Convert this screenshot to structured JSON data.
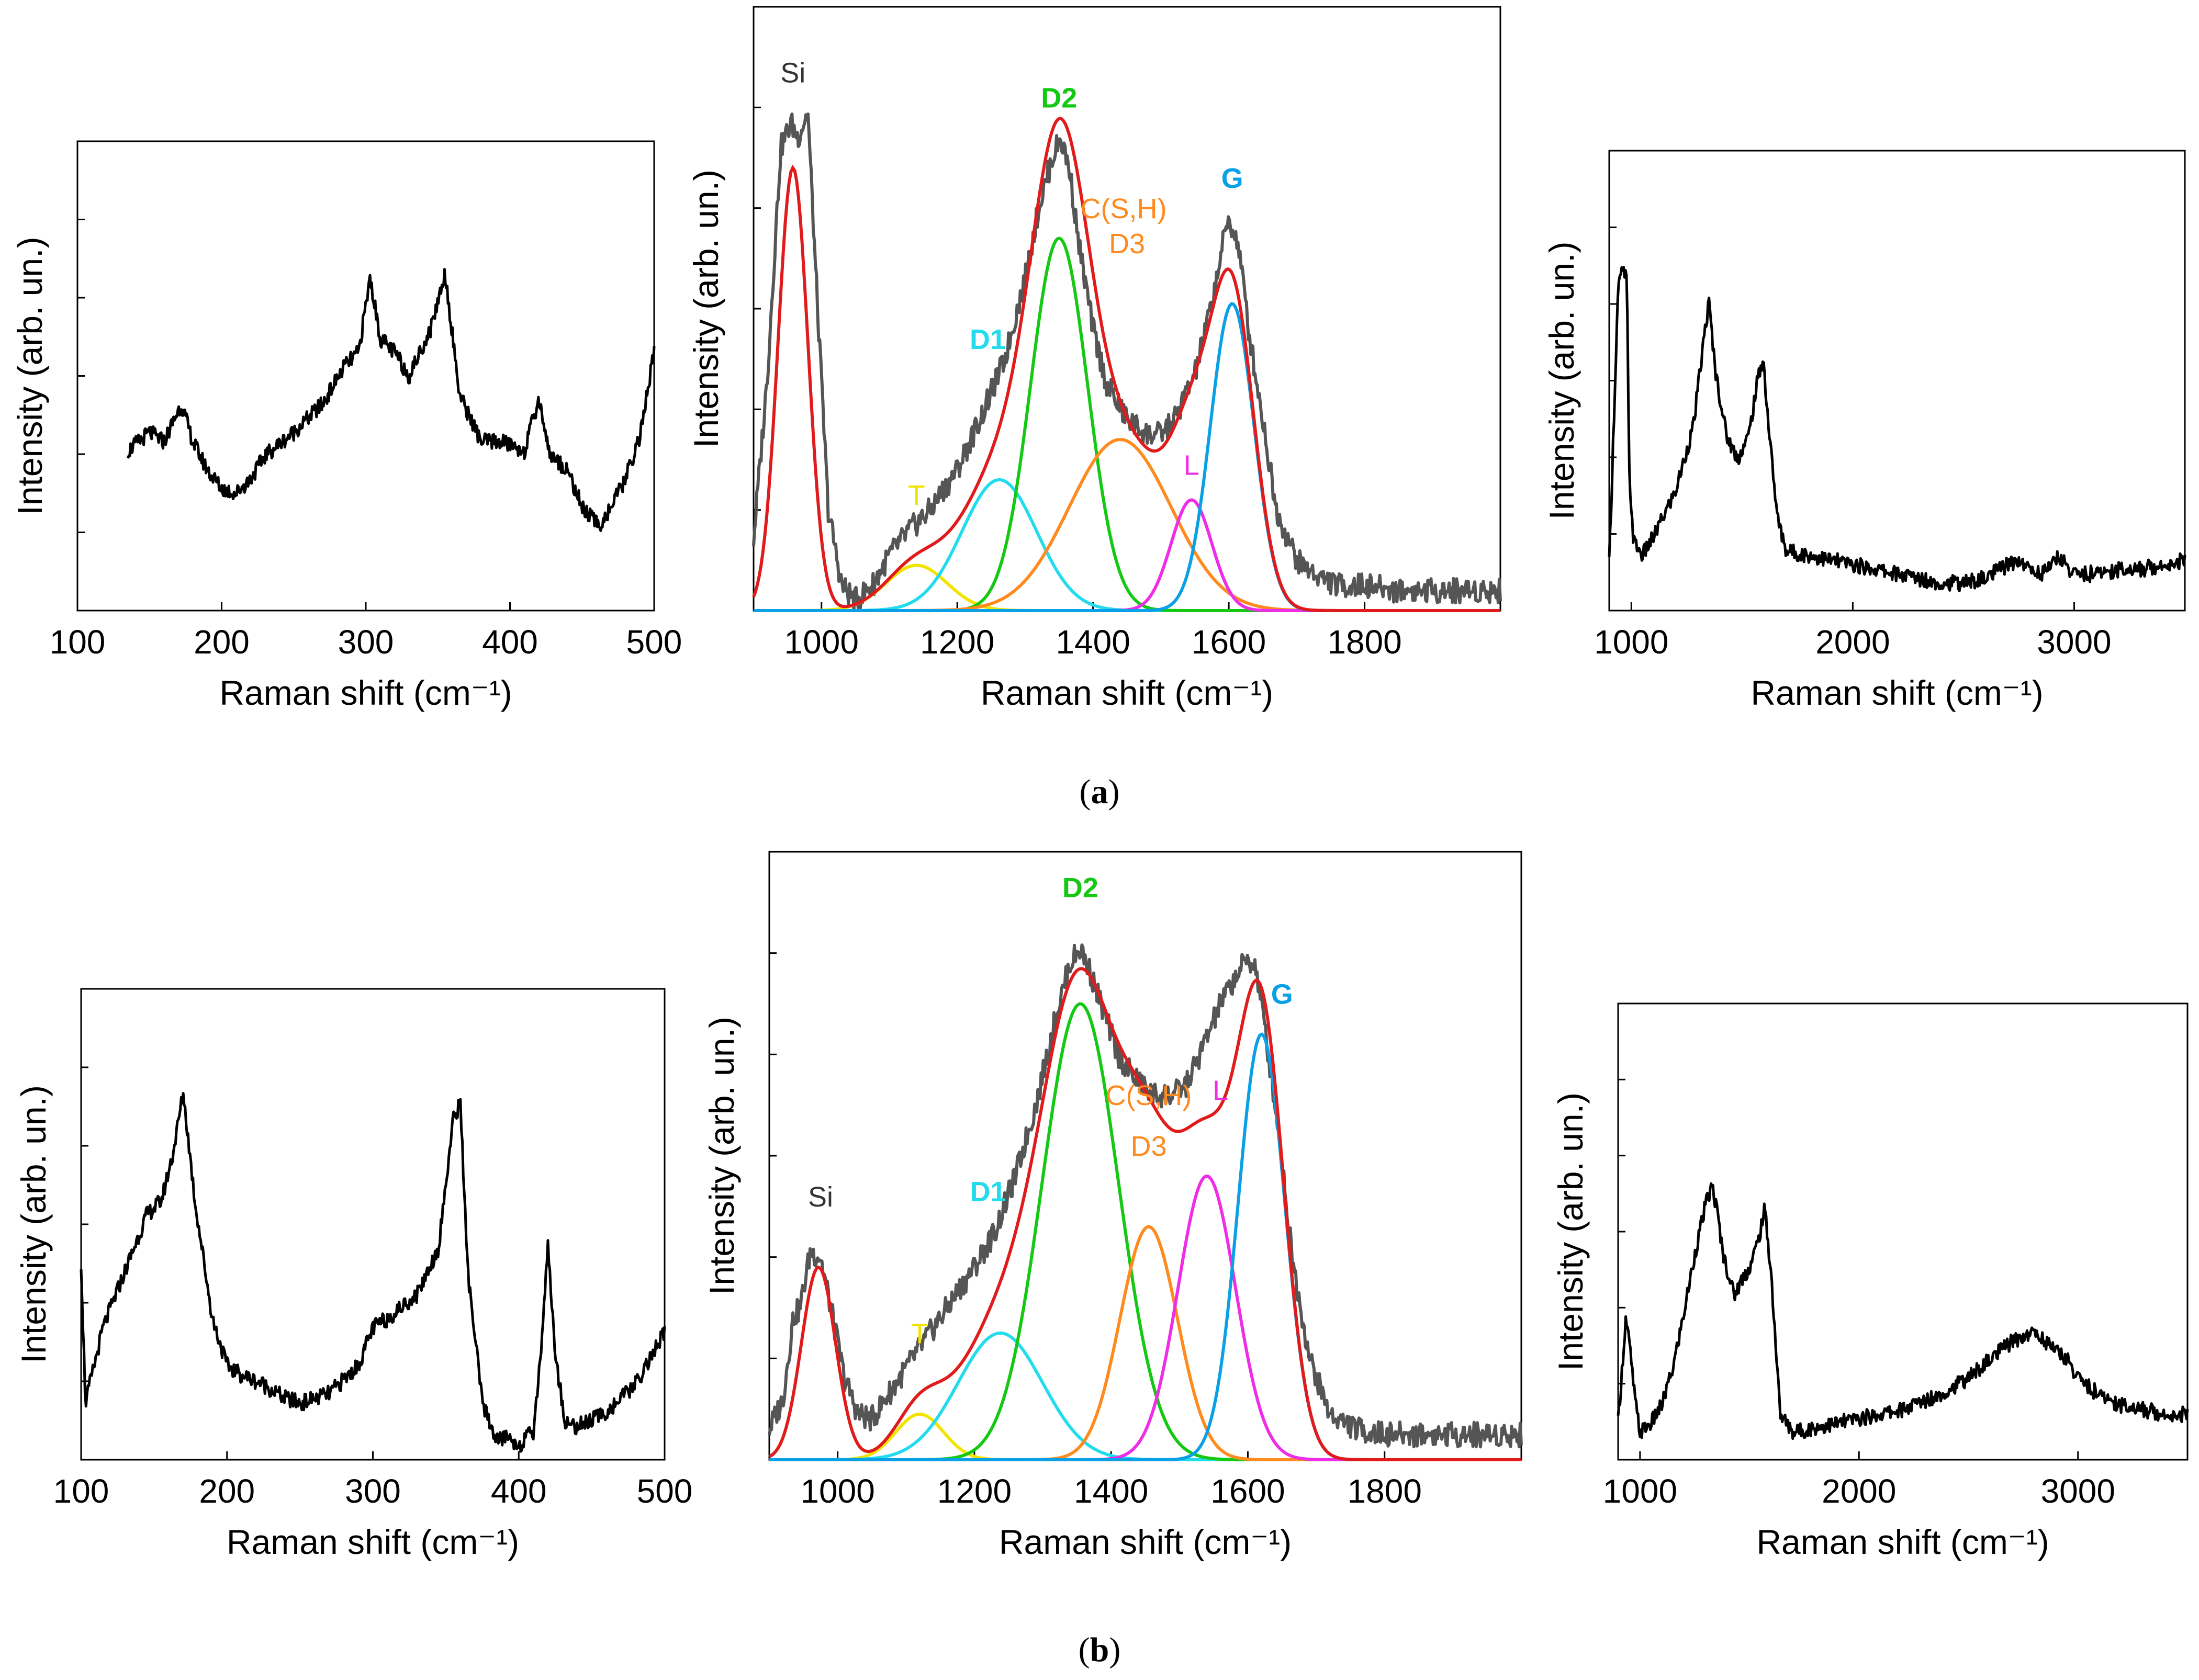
{
  "figure": {
    "label_a": "a",
    "label_b": "b"
  },
  "colors": {
    "raw": "#555555",
    "fit": "#e11b1b",
    "T": "#f2e400",
    "D1": "#22dced",
    "D2": "#14c814",
    "D3": "#ff8a1e",
    "L": "#ee2ee6",
    "G": "#0aa0e6",
    "axis": "#000000",
    "line": "#000000"
  },
  "chart_data": [
    {
      "id": "a_low",
      "type": "line",
      "xlabel": "Raman shift  (cm⁻¹)",
      "ylabel": "Intensity (arb. un.)",
      "xlim": [
        100,
        500
      ],
      "ylim": [
        0,
        1
      ],
      "xticks": [
        "100",
        "200",
        "300",
        "400",
        "500"
      ],
      "series": [
        {
          "name": "spectrum",
          "x": [
            135,
            150,
            160,
            172,
            180,
            190,
            200,
            210,
            220,
            230,
            250,
            270,
            285,
            295,
            303,
            310,
            320,
            330,
            345,
            355,
            365,
            380,
            395,
            410,
            420,
            428,
            440,
            450,
            462,
            470,
            480,
            490,
            500
          ],
          "y": [
            0.34,
            0.38,
            0.36,
            0.44,
            0.36,
            0.3,
            0.26,
            0.25,
            0.28,
            0.33,
            0.38,
            0.44,
            0.52,
            0.55,
            0.71,
            0.58,
            0.55,
            0.5,
            0.6,
            0.72,
            0.46,
            0.36,
            0.36,
            0.34,
            0.45,
            0.33,
            0.3,
            0.22,
            0.18,
            0.22,
            0.28,
            0.37,
            0.55
          ]
        }
      ]
    },
    {
      "id": "a_fit",
      "type": "line",
      "xlabel": "Raman shift  (cm⁻¹)",
      "ylabel": "Intensity (arb. un.)",
      "xlim": [
        900,
        2000
      ],
      "ylim": [
        0,
        1.2
      ],
      "xticks": [
        "1000",
        "1200",
        "1400",
        "1600",
        "1800"
      ],
      "raw": {
        "x": [
          900,
          920,
          940,
          955,
          965,
          980,
          995,
          1010,
          1030,
          1050,
          1075,
          1100,
          1130,
          1160,
          1200,
          1240,
          1270,
          1300,
          1320,
          1340,
          1352,
          1365,
          1380,
          1400,
          1420,
          1450,
          1480,
          1500,
          1520,
          1550,
          1575,
          1590,
          1600,
          1615,
          1630,
          1650,
          1670,
          1700,
          1730,
          1760,
          1800,
          1850,
          1900,
          1950,
          2000
        ],
        "y": [
          0.14,
          0.46,
          0.92,
          0.97,
          0.94,
          0.99,
          0.58,
          0.2,
          0.05,
          0.02,
          0.05,
          0.11,
          0.16,
          0.2,
          0.28,
          0.4,
          0.5,
          0.66,
          0.8,
          0.9,
          0.94,
          0.88,
          0.72,
          0.56,
          0.45,
          0.38,
          0.35,
          0.35,
          0.38,
          0.47,
          0.61,
          0.72,
          0.78,
          0.72,
          0.55,
          0.38,
          0.2,
          0.1,
          0.07,
          0.05,
          0.05,
          0.04,
          0.04,
          0.04,
          0.04
        ]
      },
      "peaks": [
        {
          "name": "Si",
          "center": 958,
          "height": 0.88,
          "width": 22,
          "color": "fit"
        },
        {
          "name": "T",
          "center": 1140,
          "height": 0.09,
          "width": 45,
          "color": "T"
        },
        {
          "name": "D1",
          "center": 1262,
          "height": 0.26,
          "width": 55,
          "color": "D1"
        },
        {
          "name": "D2",
          "center": 1350,
          "height": 0.74,
          "width": 42,
          "color": "D2"
        },
        {
          "name": "D3",
          "center": 1440,
          "height": 0.34,
          "width": 75,
          "color": "D3"
        },
        {
          "name": "L",
          "center": 1545,
          "height": 0.22,
          "width": 30,
          "color": "L"
        },
        {
          "name": "G",
          "center": 1605,
          "height": 0.61,
          "width": 32,
          "color": "G"
        }
      ],
      "labels": {
        "Si": "Si",
        "T": "T",
        "D1": "D1",
        "D2": "D2",
        "CSH": "C(S,H)",
        "D3": "D3",
        "L": "L",
        "G": "G"
      }
    },
    {
      "id": "a_full",
      "type": "line",
      "xlabel": "Raman shift  (cm⁻¹)",
      "ylabel": "Intensity (arb. un.)",
      "xlim": [
        900,
        3500
      ],
      "ylim": [
        0,
        1
      ],
      "xticks": [
        "1000",
        "2000",
        "3000"
      ],
      "series": [
        {
          "name": "spectrum",
          "x": [
            900,
            940,
            960,
            980,
            990,
            1010,
            1050,
            1100,
            1200,
            1280,
            1330,
            1350,
            1380,
            1430,
            1480,
            1530,
            1570,
            1595,
            1620,
            1660,
            1700,
            1800,
            1900,
            2000,
            2100,
            2200,
            2300,
            2400,
            2500,
            2600,
            2700,
            2750,
            2800,
            2850,
            2900,
            2930,
            2960,
            3000,
            3100,
            3200,
            3300,
            3400,
            3500
          ],
          "y": [
            0.1,
            0.7,
            0.74,
            0.72,
            0.3,
            0.15,
            0.12,
            0.16,
            0.26,
            0.4,
            0.6,
            0.67,
            0.52,
            0.38,
            0.33,
            0.38,
            0.5,
            0.55,
            0.4,
            0.2,
            0.13,
            0.12,
            0.11,
            0.1,
            0.09,
            0.08,
            0.07,
            0.06,
            0.06,
            0.07,
            0.1,
            0.11,
            0.09,
            0.08,
            0.1,
            0.12,
            0.1,
            0.08,
            0.08,
            0.09,
            0.09,
            0.1,
            0.11
          ]
        }
      ]
    },
    {
      "id": "b_low",
      "type": "line",
      "xlabel": "Raman shift  (cm⁻¹)",
      "ylabel": "Intensity (arb. un.)",
      "xlim": [
        100,
        500
      ],
      "ylim": [
        0,
        1
      ],
      "xticks": [
        "100",
        "200",
        "300",
        "400",
        "500"
      ],
      "series": [
        {
          "name": "spectrum",
          "x": [
            100,
            103,
            115,
            130,
            145,
            155,
            163,
            170,
            178,
            190,
            200,
            210,
            225,
            240,
            250,
            270,
            290,
            300,
            310,
            330,
            345,
            355,
            360,
            365,
            375,
            385,
            392,
            400,
            410,
            415,
            420,
            425,
            432,
            440,
            460,
            480,
            500
          ],
          "y": [
            0.42,
            0.12,
            0.28,
            0.4,
            0.52,
            0.55,
            0.65,
            0.78,
            0.55,
            0.3,
            0.2,
            0.18,
            0.16,
            0.13,
            0.12,
            0.14,
            0.2,
            0.28,
            0.3,
            0.35,
            0.45,
            0.72,
            0.76,
            0.4,
            0.12,
            0.04,
            0.05,
            0.03,
            0.06,
            0.22,
            0.46,
            0.22,
            0.08,
            0.07,
            0.1,
            0.16,
            0.27
          ]
        }
      ]
    },
    {
      "id": "b_fit",
      "type": "line",
      "xlabel": "Raman shift  (cm⁻¹)",
      "ylabel": "Intensity (arb. un.)",
      "xlim": [
        900,
        2000
      ],
      "ylim": [
        0,
        1.2
      ],
      "xticks": [
        "1000",
        "1200",
        "1400",
        "1600",
        "1800"
      ],
      "raw": {
        "x": [
          900,
          920,
          935,
          945,
          960,
          975,
          990,
          1010,
          1030,
          1050,
          1070,
          1100,
          1130,
          1160,
          1200,
          1230,
          1260,
          1290,
          1320,
          1340,
          1355,
          1370,
          1390,
          1410,
          1430,
          1460,
          1490,
          1510,
          1530,
          1560,
          1585,
          1600,
          1612,
          1625,
          1645,
          1665,
          1690,
          1720,
          1760,
          1800,
          1850,
          1900,
          1950,
          2000
        ],
        "y": [
          0.06,
          0.12,
          0.28,
          0.3,
          0.41,
          0.4,
          0.3,
          0.16,
          0.09,
          0.08,
          0.12,
          0.18,
          0.24,
          0.3,
          0.38,
          0.45,
          0.56,
          0.7,
          0.88,
          0.98,
          1.01,
          0.96,
          0.88,
          0.8,
          0.76,
          0.72,
          0.72,
          0.74,
          0.8,
          0.9,
          0.96,
          0.99,
          0.97,
          0.85,
          0.65,
          0.4,
          0.2,
          0.09,
          0.06,
          0.05,
          0.05,
          0.05,
          0.05,
          0.05
        ]
      },
      "peaks": [
        {
          "name": "Si",
          "center": 972,
          "height": 0.38,
          "width": 25,
          "color": "fit"
        },
        {
          "name": "T",
          "center": 1120,
          "height": 0.09,
          "width": 35,
          "color": "T"
        },
        {
          "name": "D1",
          "center": 1238,
          "height": 0.25,
          "width": 62,
          "color": "D1"
        },
        {
          "name": "D2",
          "center": 1355,
          "height": 0.9,
          "width": 56,
          "color": "D2"
        },
        {
          "name": "D3",
          "center": 1455,
          "height": 0.46,
          "width": 42,
          "color": "D3"
        },
        {
          "name": "L",
          "center": 1540,
          "height": 0.56,
          "width": 42,
          "color": "L"
        },
        {
          "name": "G",
          "center": 1620,
          "height": 0.84,
          "width": 34,
          "color": "G"
        }
      ],
      "labels": {
        "Si": "Si",
        "T": "T",
        "D1": "D1",
        "D2": "D2",
        "CSH": "C(S,H)",
        "D3": "D3",
        "L": "L",
        "G": "G"
      }
    },
    {
      "id": "b_full",
      "type": "line",
      "xlabel": "Raman shift  (cm⁻¹)",
      "ylabel": "Intensity (arb. un.)",
      "xlim": [
        900,
        3500
      ],
      "ylim": [
        0,
        1
      ],
      "xticks": [
        "1000",
        "2000",
        "3000"
      ],
      "series": [
        {
          "name": "spectrum",
          "x": [
            900,
            935,
            950,
            980,
            1000,
            1050,
            1100,
            1150,
            1200,
            1250,
            1300,
            1330,
            1350,
            1380,
            1430,
            1470,
            1500,
            1540,
            1570,
            1600,
            1640,
            1700,
            1800,
            1900,
            2000,
            2100,
            2200,
            2300,
            2400,
            2500,
            2600,
            2700,
            2800,
            2900,
            2950,
            3000,
            3100,
            3200,
            3300,
            3400,
            3500
          ],
          "y": [
            0.08,
            0.31,
            0.26,
            0.12,
            0.06,
            0.08,
            0.12,
            0.2,
            0.32,
            0.45,
            0.56,
            0.6,
            0.55,
            0.45,
            0.36,
            0.4,
            0.42,
            0.48,
            0.55,
            0.4,
            0.1,
            0.06,
            0.07,
            0.08,
            0.09,
            0.1,
            0.11,
            0.13,
            0.15,
            0.18,
            0.22,
            0.26,
            0.28,
            0.24,
            0.22,
            0.18,
            0.14,
            0.12,
            0.11,
            0.1,
            0.1
          ]
        }
      ]
    }
  ]
}
